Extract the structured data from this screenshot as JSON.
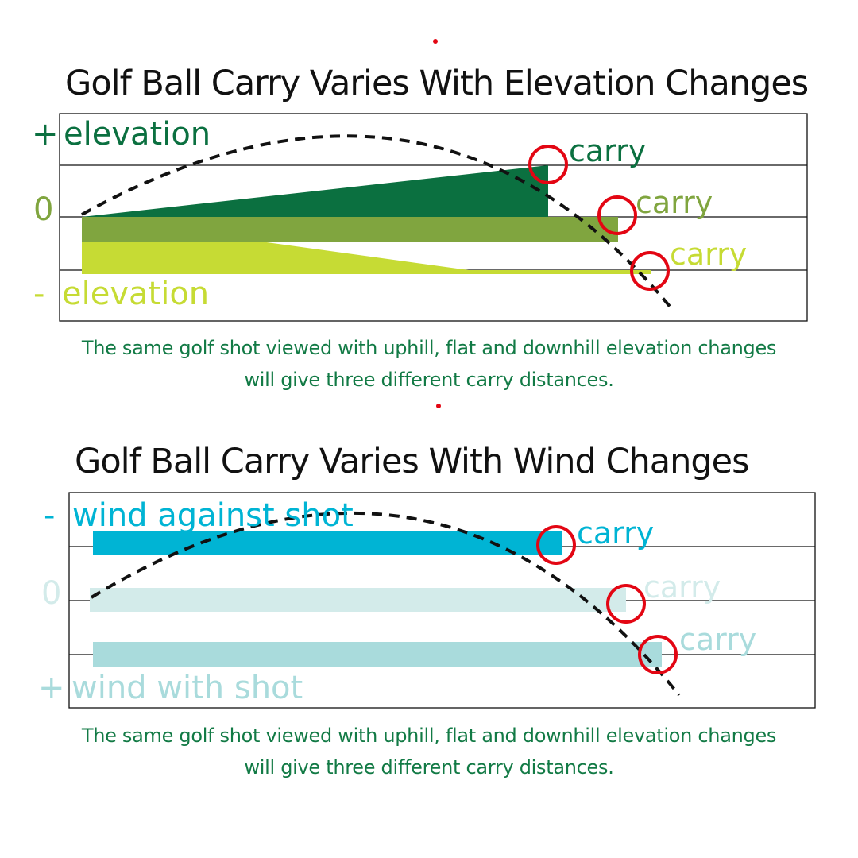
{
  "colors": {
    "elev_up": "#0b7040",
    "elev_flat": "#80a53f",
    "elev_down": "#c6db34",
    "wind_against": "#00b4d4",
    "wind_neutral": "#d3ebea",
    "wind_with": "#a9dbdc",
    "caption": "#127a45",
    "marker": "#e30613"
  },
  "elevation": {
    "title": "Golf Ball Carry Varies With Elevation Changes",
    "plus_sign": "+",
    "plus_label": "elevation",
    "zero_label": "0",
    "minus_sign": "-",
    "minus_label": "elevation",
    "carry_up": "carry",
    "carry_flat": "carry",
    "carry_down": "carry",
    "caption_line1": "The same golf shot viewed with uphill, flat and downhill elevation changes",
    "caption_line2": "will give three different carry distances."
  },
  "wind": {
    "title": "Golf Ball Carry Varies With Wind Changes",
    "minus_sign": "-",
    "minus_label": "wind against shot",
    "zero_label": "0",
    "plus_sign": "+",
    "plus_label": "wind with shot",
    "carry_against": "carry",
    "carry_neutral": "carry",
    "carry_with": "carry",
    "caption_line1": "The same golf shot viewed with uphill, flat and downhill elevation changes",
    "caption_line2": "will give three different carry distances."
  }
}
